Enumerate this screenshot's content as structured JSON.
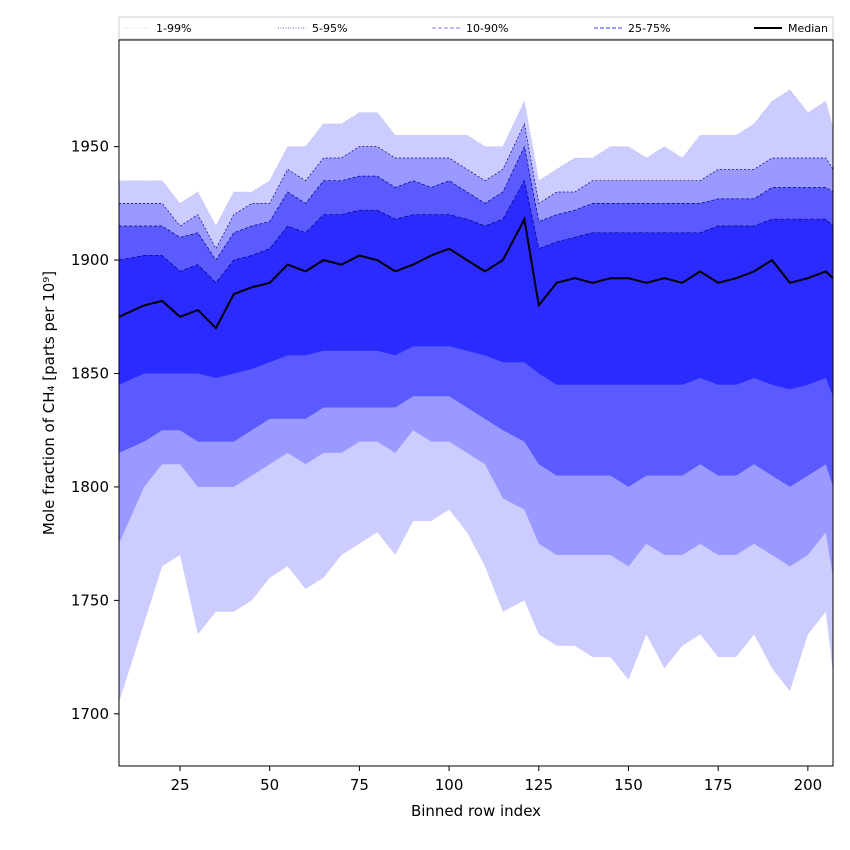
{
  "chart_data": {
    "type": "area",
    "xlabel": "Binned row index",
    "ylabel": "Mole fraction of CH₄ [parts per 10⁹]",
    "xlim": [
      8,
      207
    ],
    "ylim": [
      1677,
      1997
    ],
    "xticks": [
      25,
      50,
      75,
      100,
      125,
      150,
      175,
      200
    ],
    "yticks": [
      1700,
      1750,
      1800,
      1850,
      1900,
      1950
    ],
    "grid": false,
    "legend_position": "top",
    "colors": {
      "band_1_99": "#ccccff",
      "band_5_95": "#9999ff",
      "band_10_90": "#5a5aff",
      "band_25_75": "#2b2bff",
      "median": "#000000",
      "axes": "#000000"
    },
    "legend": [
      {
        "label": "1-99%",
        "style": "dotted",
        "color": "#ccccff"
      },
      {
        "label": "5-95%",
        "style": "dotted",
        "color": "#6666dd"
      },
      {
        "label": "10-90%",
        "style": "dashed",
        "color": "#7a7aff"
      },
      {
        "label": "25-75%",
        "style": "dashed",
        "color": "#3b3bff"
      },
      {
        "label": "Median",
        "style": "solid",
        "color": "#000000"
      }
    ],
    "x": [
      8,
      15,
      20,
      25,
      30,
      35,
      40,
      45,
      50,
      55,
      60,
      65,
      70,
      75,
      80,
      85,
      90,
      95,
      100,
      105,
      110,
      115,
      121,
      125,
      130,
      135,
      140,
      145,
      150,
      155,
      160,
      165,
      170,
      175,
      180,
      185,
      190,
      195,
      200,
      205,
      207
    ],
    "series": [
      {
        "name": "1-99%",
        "lower": [
          1705,
          1740,
          1765,
          1770,
          1735,
          1745,
          1745,
          1750,
          1760,
          1765,
          1755,
          1760,
          1770,
          1775,
          1780,
          1770,
          1785,
          1785,
          1790,
          1780,
          1765,
          1745,
          1750,
          1735,
          1730,
          1730,
          1725,
          1725,
          1715,
          1735,
          1720,
          1730,
          1735,
          1725,
          1725,
          1735,
          1720,
          1710,
          1735,
          1745,
          1718
        ],
        "upper": [
          1935,
          1935,
          1935,
          1925,
          1930,
          1915,
          1930,
          1930,
          1935,
          1950,
          1950,
          1960,
          1960,
          1965,
          1965,
          1955,
          1955,
          1955,
          1955,
          1955,
          1950,
          1950,
          1970,
          1935,
          1940,
          1945,
          1945,
          1950,
          1950,
          1945,
          1950,
          1945,
          1955,
          1955,
          1955,
          1960,
          1970,
          1975,
          1965,
          1970,
          1958
        ]
      },
      {
        "name": "5-95%",
        "lower": [
          1775,
          1800,
          1810,
          1810,
          1800,
          1800,
          1800,
          1805,
          1810,
          1815,
          1810,
          1815,
          1815,
          1820,
          1820,
          1815,
          1825,
          1820,
          1820,
          1815,
          1810,
          1795,
          1790,
          1775,
          1770,
          1770,
          1770,
          1770,
          1765,
          1775,
          1770,
          1770,
          1775,
          1770,
          1770,
          1775,
          1770,
          1765,
          1770,
          1780,
          1760
        ],
        "upper": [
          1925,
          1925,
          1925,
          1915,
          1920,
          1905,
          1920,
          1925,
          1925,
          1940,
          1935,
          1945,
          1945,
          1950,
          1950,
          1945,
          1945,
          1945,
          1945,
          1940,
          1935,
          1940,
          1960,
          1925,
          1930,
          1930,
          1935,
          1935,
          1935,
          1935,
          1935,
          1935,
          1935,
          1940,
          1940,
          1940,
          1945,
          1945,
          1945,
          1945,
          1940
        ]
      },
      {
        "name": "10-90%",
        "lower": [
          1815,
          1820,
          1825,
          1825,
          1820,
          1820,
          1820,
          1825,
          1830,
          1830,
          1830,
          1835,
          1835,
          1835,
          1835,
          1835,
          1840,
          1840,
          1840,
          1835,
          1830,
          1825,
          1820,
          1810,
          1805,
          1805,
          1805,
          1805,
          1800,
          1805,
          1805,
          1805,
          1810,
          1805,
          1805,
          1810,
          1805,
          1800,
          1805,
          1810,
          1800
        ],
        "upper": [
          1915,
          1915,
          1915,
          1910,
          1912,
          1900,
          1912,
          1915,
          1917,
          1930,
          1925,
          1935,
          1935,
          1937,
          1937,
          1932,
          1935,
          1932,
          1935,
          1930,
          1925,
          1930,
          1950,
          1917,
          1920,
          1922,
          1925,
          1925,
          1925,
          1925,
          1925,
          1925,
          1925,
          1927,
          1927,
          1927,
          1932,
          1932,
          1932,
          1932,
          1930
        ]
      },
      {
        "name": "25-75%",
        "lower": [
          1845,
          1850,
          1850,
          1850,
          1850,
          1848,
          1850,
          1852,
          1855,
          1858,
          1858,
          1860,
          1860,
          1860,
          1860,
          1858,
          1862,
          1862,
          1862,
          1860,
          1858,
          1855,
          1855,
          1850,
          1845,
          1845,
          1845,
          1845,
          1845,
          1845,
          1845,
          1845,
          1848,
          1845,
          1845,
          1848,
          1845,
          1843,
          1845,
          1848,
          1840
        ],
        "upper": [
          1900,
          1902,
          1902,
          1895,
          1898,
          1890,
          1900,
          1902,
          1905,
          1915,
          1912,
          1920,
          1920,
          1922,
          1922,
          1918,
          1920,
          1920,
          1920,
          1918,
          1915,
          1918,
          1935,
          1905,
          1908,
          1910,
          1912,
          1912,
          1912,
          1912,
          1912,
          1912,
          1912,
          1915,
          1915,
          1915,
          1918,
          1918,
          1918,
          1918,
          1915
        ]
      },
      {
        "name": "Median",
        "values": [
          1875,
          1880,
          1882,
          1875,
          1878,
          1870,
          1885,
          1888,
          1890,
          1898,
          1895,
          1900,
          1898,
          1902,
          1900,
          1895,
          1898,
          1902,
          1905,
          1900,
          1895,
          1900,
          1918,
          1880,
          1890,
          1892,
          1890,
          1892,
          1892,
          1890,
          1892,
          1890,
          1895,
          1890,
          1892,
          1895,
          1900,
          1890,
          1892,
          1895,
          1892
        ]
      }
    ]
  }
}
